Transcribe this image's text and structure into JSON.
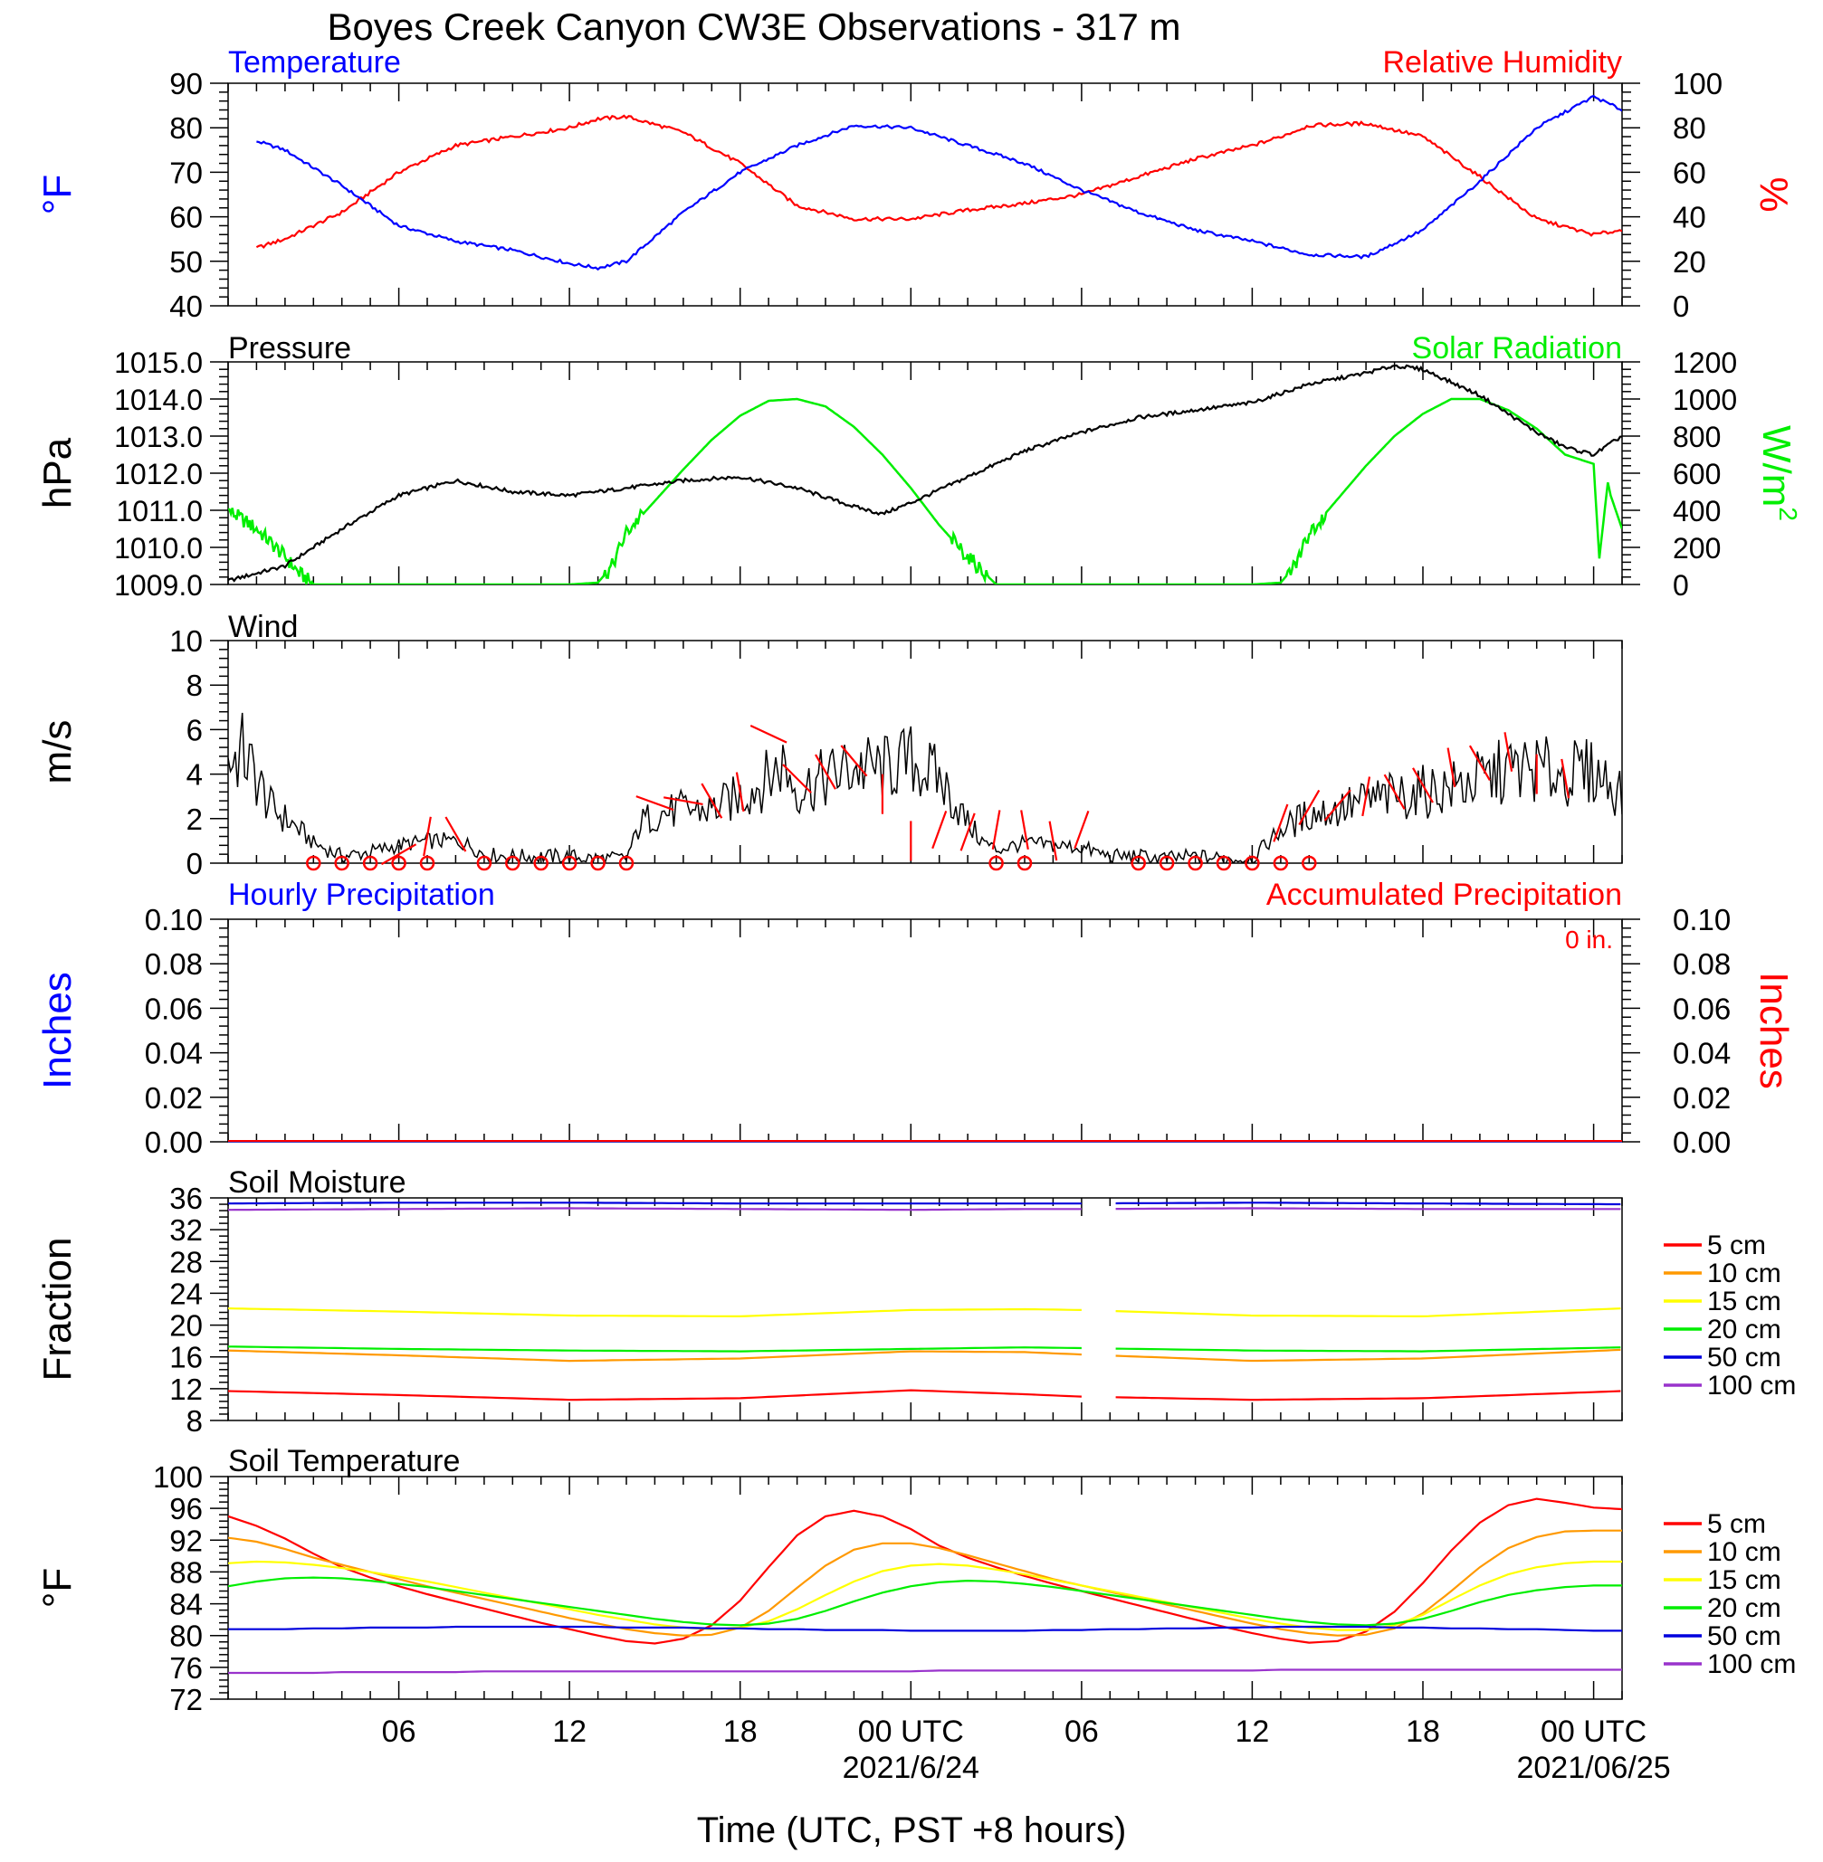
{
  "figure": {
    "title": "Boyes Creek Canyon CW3E Observations - 317 m",
    "xlabel": "Time (UTC, PST +8 hours)",
    "x_ticks": [
      "06",
      "12",
      "18",
      "00 UTC",
      "06",
      "12",
      "18",
      "00 UTC"
    ],
    "x_dates": [
      "2021/6/24",
      "2021/06/25"
    ]
  },
  "colors": {
    "blue": "#0000ff",
    "red": "#ff0000",
    "green": "#00ee00",
    "black": "#000000",
    "soil_5": "#ff0000",
    "soil_10": "#ff9900",
    "soil_15": "#ffff00",
    "soil_20": "#00ee00",
    "soil_50": "#0000dd",
    "soil_100": "#9933cc"
  },
  "chart_data": [
    {
      "type": "line",
      "title": "Temperature / Relative Humidity",
      "left_label": "Temperature",
      "right_label": "Relative Humidity",
      "ylabel_left": "°F",
      "ylabel_right": "%",
      "ylim_left": [
        40,
        90
      ],
      "ylim_right": [
        0,
        100
      ],
      "yticks_left": [
        "90",
        "80",
        "70",
        "60",
        "50",
        "40"
      ],
      "yticks_right": [
        "100",
        "80",
        "60",
        "40",
        "20",
        "0"
      ],
      "x_hours": [
        1,
        2,
        4,
        6,
        8,
        10,
        12,
        13,
        14,
        16,
        18,
        20,
        22,
        24,
        26,
        28,
        30,
        32,
        34,
        36,
        37,
        38,
        40,
        42,
        44,
        46,
        48,
        49
      ],
      "series": [
        {
          "name": "Temperature",
          "axis": "left",
          "values": [
            77,
            75,
            67,
            58,
            54.5,
            52.5,
            49.5,
            48.5,
            50,
            61,
            70,
            76,
            80.5,
            80,
            76,
            72,
            66,
            61,
            57,
            54.5,
            53,
            51.5,
            51,
            57,
            68,
            80,
            87,
            84
          ]
        },
        {
          "name": "Relative Humidity",
          "axis": "right",
          "values": [
            26,
            30,
            42,
            60,
            72,
            76,
            80,
            84,
            85,
            78,
            64,
            45,
            39,
            39,
            43,
            46,
            50,
            58,
            66,
            72,
            76,
            81,
            82,
            76,
            58,
            39,
            32,
            34
          ]
        }
      ]
    },
    {
      "type": "line",
      "title": "Pressure / Solar Radiation",
      "left_label": "Pressure",
      "right_label": "Solar Radiation",
      "ylabel_left": "hPa",
      "ylabel_right_base": "W/m",
      "ylabel_right_sup": "2",
      "ylim_left": [
        1009,
        1015
      ],
      "ylim_right": [
        0,
        1200
      ],
      "yticks_left": [
        "1015.0",
        "1014.0",
        "1013.0",
        "1012.0",
        "1011.0",
        "1010.0",
        "1009.0"
      ],
      "yticks_right": [
        "1200",
        "1000",
        "800",
        "600",
        "400",
        "200",
        "0"
      ],
      "pressure_x": [
        0,
        2,
        4,
        6,
        8,
        10,
        12,
        14,
        16,
        18,
        20,
        22,
        23,
        24,
        26,
        28,
        30,
        32,
        34,
        36,
        38,
        40,
        41,
        42,
        44,
        46,
        47,
        48,
        49
      ],
      "pressure_values": [
        1009.1,
        1009.5,
        1010.5,
        1011.4,
        1011.8,
        1011.5,
        1011.4,
        1011.6,
        1011.8,
        1011.9,
        1011.6,
        1011.1,
        1010.9,
        1011.2,
        1011.9,
        1012.6,
        1013.1,
        1013.5,
        1013.7,
        1013.9,
        1014.4,
        1014.7,
        1014.9,
        1014.8,
        1014.1,
        1013.1,
        1012.7,
        1012.5,
        1013.0
      ],
      "solar_x": [
        0,
        1,
        2,
        2.5,
        3,
        12,
        13,
        13.5,
        14,
        15,
        16,
        17,
        18,
        19,
        20,
        21,
        22,
        23,
        24,
        25,
        26,
        27,
        36,
        37,
        37.5,
        38,
        39,
        40,
        41,
        42,
        43,
        44,
        45,
        46,
        47,
        48,
        48.2,
        48.5,
        48.6,
        49
      ],
      "solar_values": [
        400,
        300,
        150,
        60,
        0,
        0,
        10,
        100,
        280,
        450,
        620,
        780,
        910,
        990,
        1000,
        960,
        850,
        700,
        520,
        320,
        150,
        0,
        0,
        10,
        100,
        280,
        460,
        640,
        800,
        920,
        1000,
        1000,
        940,
        840,
        700,
        650,
        140,
        550,
        480,
        300
      ]
    },
    {
      "type": "line",
      "title": "Wind",
      "ylabel": "m/s",
      "ylim": [
        0,
        10
      ],
      "yticks": [
        "10",
        "8",
        "6",
        "4",
        "2",
        "0"
      ],
      "speed_x": [
        0,
        0.5,
        1,
        1.5,
        2,
        2.5,
        3,
        3.5,
        4,
        5,
        6,
        7,
        8,
        8.5,
        9,
        10,
        11,
        12,
        13,
        14,
        14.5,
        15,
        16,
        17,
        18,
        19,
        19.5,
        20,
        21,
        22,
        23,
        24,
        25,
        26,
        26.5,
        27,
        28,
        29,
        30,
        31,
        32,
        33,
        34,
        35,
        36,
        37,
        38,
        39,
        40,
        41,
        42,
        43,
        44,
        45,
        46,
        47,
        48,
        49
      ],
      "speed_values": [
        4.5,
        5.0,
        3.8,
        2.5,
        2.0,
        1.5,
        0.9,
        0.6,
        0.3,
        0.5,
        0.8,
        1.0,
        1.0,
        0.8,
        0.4,
        0.3,
        0.3,
        0.3,
        0.2,
        0.2,
        1.8,
        2.2,
        2.4,
        2.4,
        3.0,
        3.8,
        4.5,
        3.3,
        3.8,
        4.3,
        4.2,
        4.6,
        3.8,
        1.8,
        1.0,
        0.6,
        0.9,
        0.8,
        0.7,
        0.3,
        0.3,
        0.2,
        0.3,
        0.2,
        0.2,
        1.5,
        2.2,
        2.4,
        2.8,
        3.0,
        3.2,
        3.4,
        3.7,
        4.2,
        4.2,
        4.0,
        4.1,
        3.2
      ],
      "calm_hours": [
        3,
        4,
        5,
        6,
        7,
        9,
        10,
        11,
        12,
        13,
        14,
        27,
        28,
        32,
        33,
        34,
        35,
        36,
        37,
        38
      ],
      "barb_hours": [
        6,
        7,
        8,
        15,
        16,
        17,
        18,
        19,
        20,
        21,
        22,
        23,
        24,
        25,
        26,
        27,
        28,
        29,
        30,
        37,
        38,
        39,
        40,
        41,
        42,
        43,
        44,
        45,
        46,
        47
      ],
      "barb_speeds": [
        0.4,
        1.2,
        1.3,
        2.7,
        2.8,
        2.8,
        3.2,
        5.8,
        3.8,
        4.1,
        4.6,
        3.1,
        1.0,
        1.5,
        1.4,
        1.5,
        1.5,
        1.0,
        1.5,
        1.8,
        2.5,
        2.6,
        3.0,
        3.2,
        3.5,
        4.3,
        4.5,
        5.0,
        4.0,
        3.8
      ],
      "barb_angles": [
        150,
        100,
        60,
        20,
        10,
        60,
        80,
        25,
        45,
        60,
        50,
        90,
        90,
        110,
        110,
        100,
        80,
        80,
        110,
        110,
        120,
        130,
        100,
        60,
        60,
        80,
        60,
        80,
        90,
        80
      ]
    },
    {
      "type": "line",
      "title": "Precipitation",
      "left_label": "Hourly Precipitation",
      "right_label": "Accumulated Precipitation",
      "total_text": "0 in.",
      "ylabel_left": "Inches",
      "ylabel_right": "Inches",
      "ylim": [
        0,
        0.1
      ],
      "yticks": [
        "0.10",
        "0.08",
        "0.06",
        "0.04",
        "0.02",
        "0.00"
      ],
      "hourly_values": [
        0,
        0
      ],
      "accumulated_values": [
        0,
        0
      ]
    },
    {
      "type": "line",
      "title": "Soil Moisture",
      "ylabel": "Fraction",
      "ylim": [
        8,
        36
      ],
      "yticks": [
        "36",
        "32",
        "28",
        "24",
        "20",
        "16",
        "12",
        "8"
      ],
      "x_hours": [
        0,
        6,
        12,
        18,
        24,
        28,
        30,
        36,
        42,
        49
      ],
      "gap_hours": [
        30.2,
        31.2
      ],
      "series": [
        {
          "name": "5 cm",
          "values": [
            11.7,
            11.2,
            10.6,
            10.8,
            11.8,
            11.3,
            11.0,
            10.6,
            10.8,
            11.7
          ]
        },
        {
          "name": "10 cm",
          "values": [
            16.8,
            16.2,
            15.5,
            15.8,
            16.7,
            16.6,
            16.3,
            15.5,
            15.8,
            16.9
          ]
        },
        {
          "name": "15 cm",
          "values": [
            22.1,
            21.7,
            21.2,
            21.1,
            21.9,
            22.0,
            21.9,
            21.2,
            21.1,
            22.1
          ]
        },
        {
          "name": "20 cm",
          "values": [
            17.3,
            17.0,
            16.8,
            16.7,
            17.0,
            17.2,
            17.1,
            16.8,
            16.7,
            17.2
          ]
        },
        {
          "name": "50 cm",
          "values": [
            35.3,
            35.4,
            35.4,
            35.3,
            35.3,
            35.3,
            35.3,
            35.4,
            35.3,
            35.2
          ]
        },
        {
          "name": "100 cm",
          "values": [
            34.5,
            34.6,
            34.7,
            34.6,
            34.5,
            34.6,
            34.6,
            34.7,
            34.6,
            34.6
          ]
        }
      ]
    },
    {
      "type": "line",
      "title": "Soil Temperature",
      "ylabel": "°F",
      "ylim": [
        72,
        100
      ],
      "yticks": [
        "100",
        "96",
        "92",
        "88",
        "84",
        "80",
        "76",
        "72"
      ],
      "x_hours": [
        0,
        1,
        2,
        3,
        4,
        5,
        6,
        7,
        8,
        9,
        10,
        11,
        12,
        13,
        14,
        15,
        16,
        17,
        18,
        19,
        20,
        21,
        22,
        23,
        24,
        25,
        26,
        27,
        28,
        29,
        30,
        31,
        32,
        33,
        34,
        35,
        36,
        37,
        38,
        39,
        40,
        41,
        42,
        43,
        44,
        45,
        46,
        47,
        48,
        49
      ],
      "series": [
        {
          "name": "5 cm",
          "values": [
            95,
            93.8,
            92.2,
            90.3,
            88.6,
            87.3,
            86.2,
            85.2,
            84.3,
            83.4,
            82.5,
            81.6,
            80.8,
            80,
            79.3,
            79,
            79.6,
            81.3,
            84.4,
            88.6,
            92.6,
            95,
            95.7,
            95,
            93.4,
            91.3,
            89.8,
            88.6,
            87.5,
            86.5,
            85.6,
            84.7,
            83.8,
            82.9,
            82,
            81.1,
            80.3,
            79.6,
            79.1,
            79.3,
            80.5,
            83,
            86.6,
            90.7,
            94.2,
            96.4,
            97.2,
            96.7,
            96.1,
            95.9
          ]
        },
        {
          "name": "10 cm",
          "values": [
            92.3,
            91.8,
            90.9,
            89.8,
            88.9,
            88,
            87.1,
            86.2,
            85.4,
            84.6,
            83.8,
            83,
            82.2,
            81.5,
            80.8,
            80.3,
            80,
            80.1,
            81,
            83.1,
            86,
            88.8,
            90.8,
            91.6,
            91.6,
            91,
            90.1,
            89.1,
            88.1,
            87.1,
            86.3,
            85.5,
            84.7,
            83.9,
            83.1,
            82.3,
            81.5,
            80.8,
            80.3,
            80,
            80.1,
            80.9,
            82.8,
            85.6,
            88.6,
            91,
            92.4,
            93.1,
            93.2,
            93.2
          ]
        },
        {
          "name": "15 cm",
          "values": [
            89.1,
            89.3,
            89.2,
            88.9,
            88.5,
            88,
            87.4,
            86.8,
            86.1,
            85.4,
            84.7,
            84,
            83.3,
            82.6,
            82,
            81.4,
            81,
            80.8,
            81,
            81.8,
            83.3,
            85.1,
            86.8,
            88.1,
            88.8,
            89,
            88.8,
            88.3,
            87.7,
            87,
            86.3,
            85.6,
            84.9,
            84.2,
            83.5,
            82.8,
            82.1,
            81.5,
            81,
            80.7,
            80.7,
            81.3,
            82.6,
            84.5,
            86.3,
            87.7,
            88.6,
            89.1,
            89.3,
            89.3
          ]
        },
        {
          "name": "20 cm",
          "values": [
            86.2,
            86.8,
            87.2,
            87.3,
            87.2,
            86.9,
            86.5,
            86.1,
            85.6,
            85.1,
            84.6,
            84.1,
            83.6,
            83.1,
            82.6,
            82.1,
            81.7,
            81.4,
            81.3,
            81.5,
            82.1,
            83.1,
            84.3,
            85.4,
            86.2,
            86.7,
            86.9,
            86.8,
            86.5,
            86.1,
            85.6,
            85.1,
            84.6,
            84.1,
            83.6,
            83.1,
            82.6,
            82.1,
            81.7,
            81.4,
            81.3,
            81.5,
            82.1,
            83.1,
            84.2,
            85.1,
            85.7,
            86.1,
            86.3,
            86.3
          ]
        },
        {
          "name": "50 cm",
          "values": [
            80.8,
            80.8,
            80.8,
            80.9,
            80.9,
            81,
            81,
            81,
            81.1,
            81.1,
            81.1,
            81.1,
            81.1,
            81.1,
            81,
            81,
            81,
            80.9,
            80.9,
            80.8,
            80.8,
            80.7,
            80.7,
            80.7,
            80.6,
            80.6,
            80.6,
            80.6,
            80.6,
            80.7,
            80.7,
            80.8,
            80.8,
            80.9,
            80.9,
            81,
            81,
            81.1,
            81.1,
            81.1,
            81.1,
            81,
            81,
            80.9,
            80.9,
            80.8,
            80.8,
            80.7,
            80.6,
            80.6
          ]
        },
        {
          "name": "100 cm",
          "values": [
            75.3,
            75.3,
            75.3,
            75.3,
            75.4,
            75.4,
            75.4,
            75.4,
            75.4,
            75.5,
            75.5,
            75.5,
            75.5,
            75.5,
            75.5,
            75.5,
            75.5,
            75.5,
            75.5,
            75.5,
            75.5,
            75.5,
            75.5,
            75.5,
            75.5,
            75.6,
            75.6,
            75.6,
            75.6,
            75.6,
            75.6,
            75.6,
            75.6,
            75.6,
            75.6,
            75.6,
            75.6,
            75.7,
            75.7,
            75.7,
            75.7,
            75.7,
            75.7,
            75.7,
            75.7,
            75.7,
            75.7,
            75.7,
            75.7,
            75.7
          ]
        }
      ]
    }
  ],
  "legend": {
    "labels": [
      "5 cm",
      "10 cm",
      "15 cm",
      "20 cm",
      "50 cm",
      "100 cm"
    ]
  }
}
